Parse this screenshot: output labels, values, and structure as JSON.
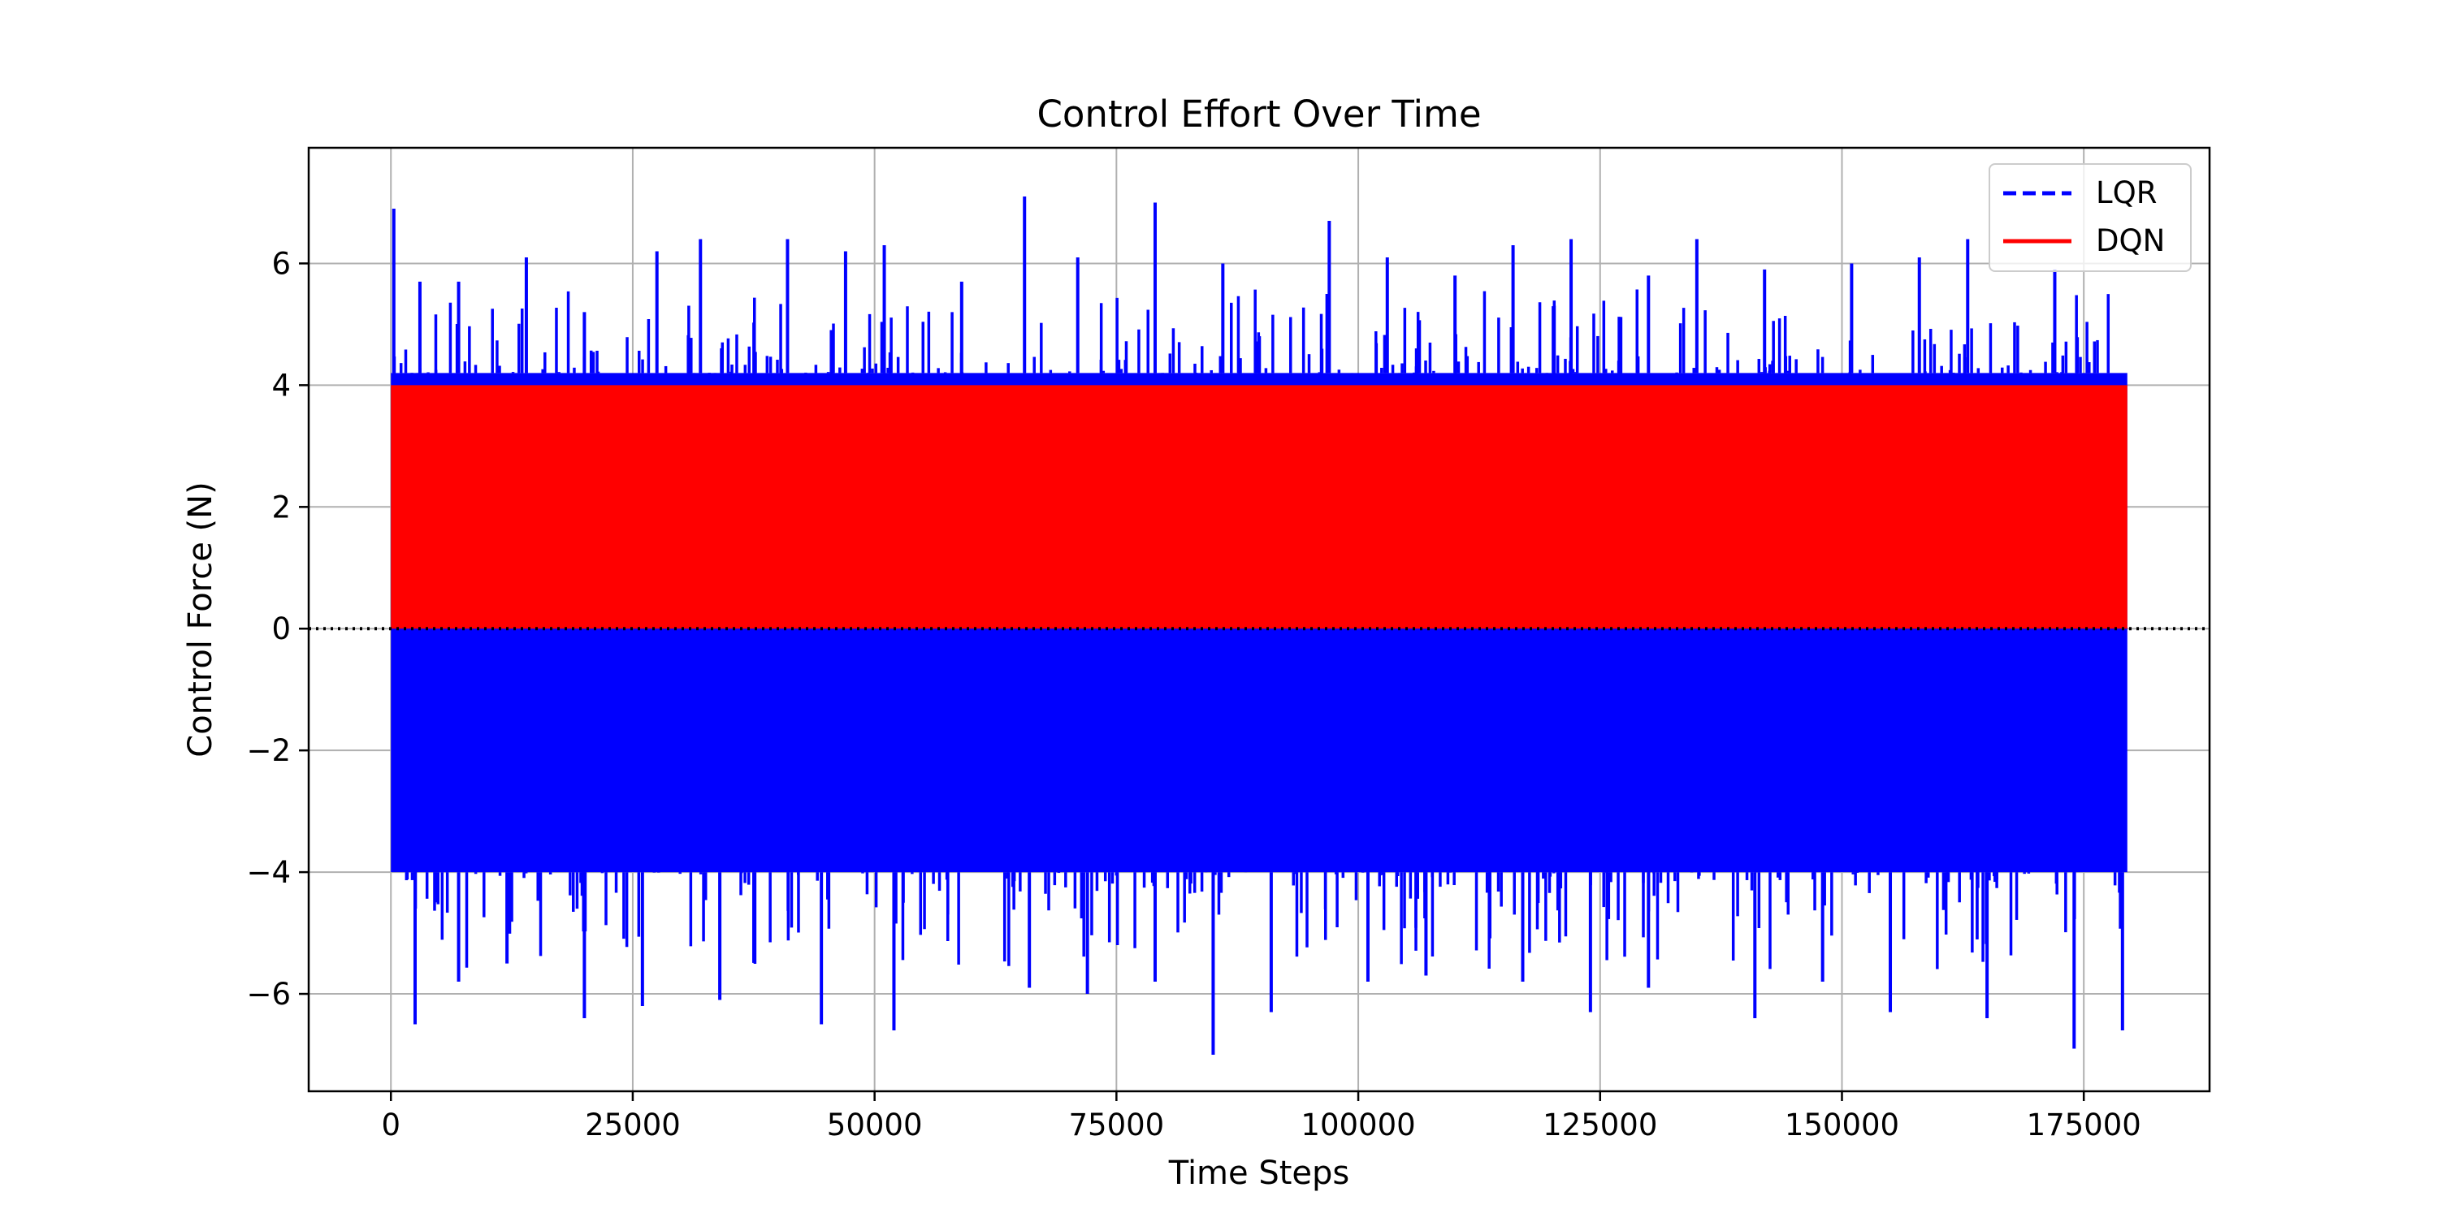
{
  "chart_data": {
    "type": "line",
    "title": "Control Effort Over Time",
    "xlabel": "Time Steps",
    "ylabel": "Control Force (N)",
    "xlim": [
      -8500,
      188000
    ],
    "ylim": [
      -7.6,
      7.9
    ],
    "x_ticks": [
      0,
      25000,
      50000,
      75000,
      100000,
      125000,
      150000,
      175000
    ],
    "x_tick_labels": [
      "0",
      "25000",
      "50000",
      "75000",
      "100000",
      "125000",
      "150000",
      "175000"
    ],
    "y_ticks": [
      -6,
      -4,
      -2,
      0,
      2,
      4,
      6
    ],
    "y_tick_labels": [
      "−6",
      "−4",
      "−2",
      "0",
      "2",
      "4",
      "6"
    ],
    "grid": true,
    "legend_position": "top-right",
    "reference_line": {
      "y": 0,
      "style": "dotted",
      "color": "#000000"
    },
    "series": [
      {
        "name": "LQR",
        "color": "#0000ff",
        "line_style": "dashed",
        "x_range": [
          0,
          179500
        ],
        "band_min": -4.0,
        "band_max": 4.2,
        "peaks": [
          {
            "x": 300,
            "y": 6.9
          },
          {
            "x": 3000,
            "y": 5.7
          },
          {
            "x": 7000,
            "y": 5.7
          },
          {
            "x": 14000,
            "y": 6.1
          },
          {
            "x": 20000,
            "y": 5.2
          },
          {
            "x": 27500,
            "y": 6.2
          },
          {
            "x": 32000,
            "y": 6.4
          },
          {
            "x": 41000,
            "y": 6.4
          },
          {
            "x": 47000,
            "y": 6.2
          },
          {
            "x": 51000,
            "y": 6.3
          },
          {
            "x": 59000,
            "y": 5.7
          },
          {
            "x": 65500,
            "y": 7.1
          },
          {
            "x": 71000,
            "y": 6.1
          },
          {
            "x": 79000,
            "y": 7.0
          },
          {
            "x": 86000,
            "y": 6.0
          },
          {
            "x": 97000,
            "y": 6.7
          },
          {
            "x": 103000,
            "y": 6.1
          },
          {
            "x": 110000,
            "y": 5.8
          },
          {
            "x": 116000,
            "y": 6.3
          },
          {
            "x": 122000,
            "y": 6.4
          },
          {
            "x": 130000,
            "y": 5.8
          },
          {
            "x": 135000,
            "y": 6.4
          },
          {
            "x": 142000,
            "y": 5.9
          },
          {
            "x": 151000,
            "y": 6.0
          },
          {
            "x": 158000,
            "y": 6.1
          },
          {
            "x": 163000,
            "y": 6.4
          },
          {
            "x": 172000,
            "y": 5.9
          },
          {
            "x": 2500,
            "y": -6.5
          },
          {
            "x": 7000,
            "y": -5.8
          },
          {
            "x": 12000,
            "y": -5.5
          },
          {
            "x": 20000,
            "y": -6.4
          },
          {
            "x": 26000,
            "y": -6.2
          },
          {
            "x": 34000,
            "y": -6.1
          },
          {
            "x": 44500,
            "y": -6.5
          },
          {
            "x": 52000,
            "y": -6.6
          },
          {
            "x": 66000,
            "y": -5.9
          },
          {
            "x": 72000,
            "y": -6.0
          },
          {
            "x": 79000,
            "y": -5.8
          },
          {
            "x": 85000,
            "y": -7.0
          },
          {
            "x": 91000,
            "y": -6.3
          },
          {
            "x": 101000,
            "y": -5.8
          },
          {
            "x": 107000,
            "y": -5.7
          },
          {
            "x": 117000,
            "y": -5.8
          },
          {
            "x": 124000,
            "y": -6.3
          },
          {
            "x": 130000,
            "y": -5.9
          },
          {
            "x": 141000,
            "y": -6.4
          },
          {
            "x": 148000,
            "y": -5.8
          },
          {
            "x": 155000,
            "y": -6.3
          },
          {
            "x": 165000,
            "y": -6.4
          },
          {
            "x": 174000,
            "y": -6.9
          },
          {
            "x": 179000,
            "y": -6.6
          }
        ]
      },
      {
        "name": "DQN",
        "color": "#ff0000",
        "line_style": "solid",
        "x_range": [
          0,
          179500
        ],
        "band_min": 0,
        "band_max": 4.0
      }
    ]
  }
}
